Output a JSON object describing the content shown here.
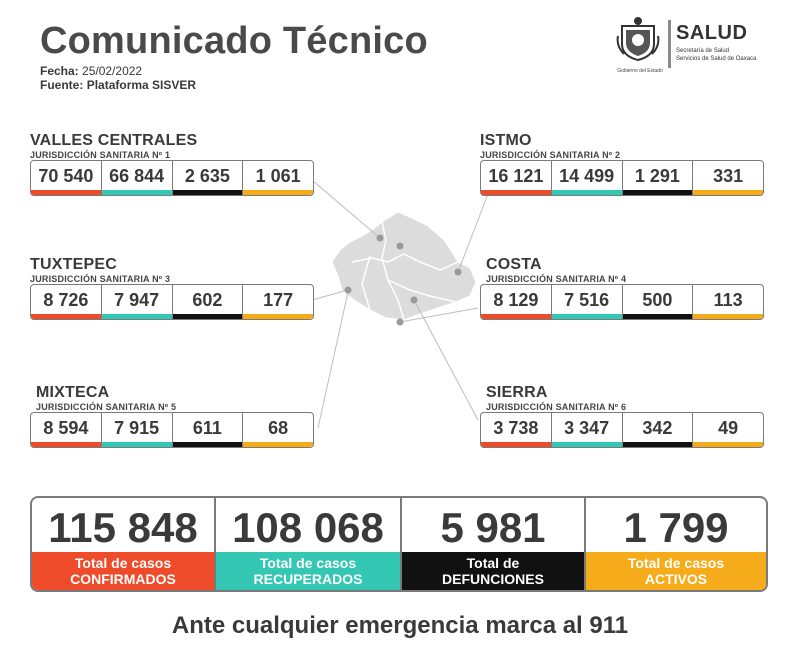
{
  "header": {
    "title": "Comunicado Técnico",
    "date_label": "Fecha:",
    "date_value": "25/02/2022",
    "source_label": "Fuente:",
    "source_value": "Plataforma SISVER"
  },
  "logo": {
    "brand": "SALUD",
    "line1": "Secretaría de Salud",
    "line2": "Servicios de Salud de Oaxaca",
    "gov": "Gobierno del Estado"
  },
  "colors": {
    "confirmados": "#ee4b2b",
    "recuperados": "#33c7b4",
    "defunciones": "#111111",
    "activos": "#f5ab1a",
    "map": "#d9d9d9"
  },
  "regions": {
    "valles": {
      "name": "VALLES CENTRALES",
      "jur": "JURISDICCIÓN SANITARIA Nº 1",
      "values": [
        "70 540",
        "66 844",
        "2 635",
        "1 061"
      ]
    },
    "istmo": {
      "name": "ISTMO",
      "jur": "JURISDICCIÓN SANITARIA Nº 2",
      "values": [
        "16 121",
        "14 499",
        "1 291",
        "331"
      ]
    },
    "tuxtepec": {
      "name": "TUXTEPEC",
      "jur": "JURISDICCIÓN SANITARIA Nº 3",
      "values": [
        "8 726",
        "7 947",
        "602",
        "177"
      ]
    },
    "costa": {
      "name": "COSTA",
      "jur": "JURISDICCIÓN SANITARIA Nº 4",
      "values": [
        "8 129",
        "7 516",
        "500",
        "113"
      ]
    },
    "mixteca": {
      "name": "MIXTECA",
      "jur": "JURISDICCIÓN SANITARIA Nº 5",
      "values": [
        "8 594",
        "7 915",
        "611",
        "68"
      ]
    },
    "sierra": {
      "name": "SIERRA",
      "jur": "JURISDICCIÓN SANITARIA Nº 6",
      "values": [
        "3 738",
        "3 347",
        "342",
        "49"
      ]
    }
  },
  "totals": {
    "confirmados": {
      "value": "115 848",
      "line1": "Total de casos",
      "line2": "CONFIRMADOS"
    },
    "recuperados": {
      "value": "108 068",
      "line1": "Total de casos",
      "line2": "RECUPERADOS"
    },
    "defunciones": {
      "value": "5 981",
      "line1": "Total de",
      "line2": "DEFUNCIONES"
    },
    "activos": {
      "value": "1 799",
      "line1": "Total de casos",
      "line2": "ACTIVOS"
    }
  },
  "footer": {
    "text": "Ante cualquier emergencia marca al 911"
  }
}
